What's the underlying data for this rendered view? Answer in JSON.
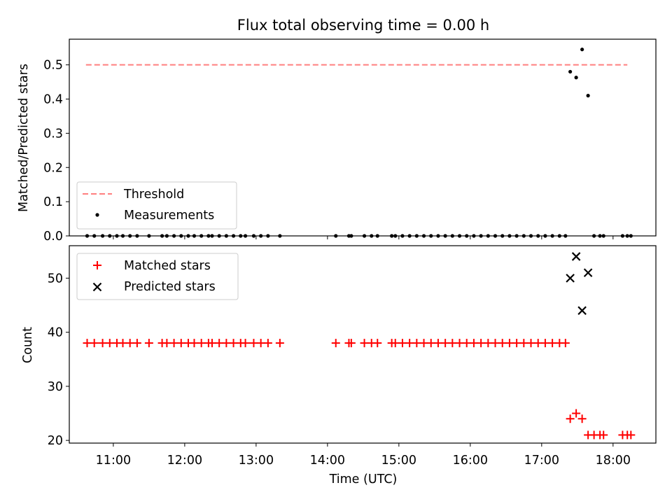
{
  "chart_data": [
    {
      "type": "scatter",
      "title": "Flux total observing time = 0.00 h",
      "xlabel": "",
      "ylabel": "Matched/Predicted stars",
      "ylim": [
        0,
        0.575
      ],
      "xlim": [
        "10:23",
        "18:36"
      ],
      "yticks": [
        "0.0",
        "0.1",
        "0.2",
        "0.3",
        "0.4",
        "0.5"
      ],
      "grid": false,
      "legend_position": "lower-left",
      "threshold": {
        "name": "Threshold",
        "value": 0.5,
        "x_start": "10:37",
        "x_end": "18:12",
        "color": "#ff7f7f"
      },
      "series": [
        {
          "name": "Measurements",
          "color": "#000000",
          "x": [
            "10:38",
            "10:44",
            "10:51",
            "10:57",
            "11:03",
            "11:08",
            "11:14",
            "11:20",
            "11:30",
            "11:41",
            "11:45",
            "11:51",
            "11:57",
            "12:03",
            "12:08",
            "12:14",
            "12:20",
            "12:23",
            "12:29",
            "12:35",
            "12:41",
            "12:47",
            "12:51",
            "12:58",
            "13:04",
            "13:10",
            "13:20",
            "14:07",
            "14:18",
            "14:20",
            "14:31",
            "14:37",
            "14:42",
            "14:54",
            "14:57",
            "15:03",
            "15:09",
            "15:15",
            "15:21",
            "15:27",
            "15:33",
            "15:39",
            "15:45",
            "15:51",
            "15:57",
            "16:03",
            "16:09",
            "16:15",
            "16:21",
            "16:27",
            "16:33",
            "16:39",
            "16:45",
            "16:51",
            "16:57",
            "17:03",
            "17:09",
            "17:15",
            "17:20",
            "17:24",
            "17:29",
            "17:34",
            "17:39",
            "17:44",
            "17:49",
            "17:52",
            "18:08",
            "18:12",
            "18:15"
          ],
          "y": [
            0,
            0,
            0,
            0,
            0,
            0,
            0,
            0,
            0,
            0,
            0,
            0,
            0,
            0,
            0,
            0,
            0,
            0,
            0,
            0,
            0,
            0,
            0,
            0,
            0,
            0,
            0,
            0,
            0,
            0,
            0,
            0,
            0,
            0,
            0,
            0,
            0,
            0,
            0,
            0,
            0,
            0,
            0,
            0,
            0,
            0,
            0,
            0,
            0,
            0,
            0,
            0,
            0,
            0,
            0,
            0,
            0,
            0,
            0,
            0.48,
            0.463,
            0.545,
            0.41,
            0,
            0,
            0,
            0,
            0,
            0
          ]
        }
      ]
    },
    {
      "type": "scatter",
      "title": "",
      "xlabel": "Time (UTC)",
      "ylabel": "Count",
      "ylim": [
        19.5,
        56
      ],
      "xlim": [
        "10:23",
        "18:36"
      ],
      "yticks": [
        "20",
        "30",
        "40",
        "50"
      ],
      "xticks": [
        "11:00",
        "12:00",
        "13:00",
        "14:00",
        "15:00",
        "16:00",
        "17:00",
        "18:00"
      ],
      "grid": false,
      "legend_position": "upper-left",
      "series": [
        {
          "name": "Matched stars",
          "color": "#ff0000",
          "marker": "+",
          "x": [
            "10:38",
            "10:44",
            "10:51",
            "10:57",
            "11:03",
            "11:08",
            "11:14",
            "11:20",
            "11:30",
            "11:41",
            "11:45",
            "11:51",
            "11:57",
            "12:03",
            "12:08",
            "12:14",
            "12:20",
            "12:23",
            "12:29",
            "12:35",
            "12:41",
            "12:47",
            "12:51",
            "12:58",
            "13:04",
            "13:10",
            "13:20",
            "14:07",
            "14:18",
            "14:20",
            "14:31",
            "14:37",
            "14:42",
            "14:54",
            "14:57",
            "15:03",
            "15:09",
            "15:15",
            "15:21",
            "15:27",
            "15:33",
            "15:39",
            "15:45",
            "15:51",
            "15:57",
            "16:03",
            "16:09",
            "16:15",
            "16:21",
            "16:27",
            "16:33",
            "16:39",
            "16:45",
            "16:51",
            "16:57",
            "17:03",
            "17:09",
            "17:15",
            "17:20",
            "17:24",
            "17:29",
            "17:34",
            "17:39",
            "17:44",
            "17:49",
            "17:52",
            "18:08",
            "18:12",
            "18:15"
          ],
          "y": [
            38,
            38,
            38,
            38,
            38,
            38,
            38,
            38,
            38,
            38,
            38,
            38,
            38,
            38,
            38,
            38,
            38,
            38,
            38,
            38,
            38,
            38,
            38,
            38,
            38,
            38,
            38,
            38,
            38,
            38,
            38,
            38,
            38,
            38,
            38,
            38,
            38,
            38,
            38,
            38,
            38,
            38,
            38,
            38,
            38,
            38,
            38,
            38,
            38,
            38,
            38,
            38,
            38,
            38,
            38,
            38,
            38,
            38,
            38,
            24,
            25,
            24,
            21,
            21,
            21,
            21,
            21,
            21,
            21
          ]
        },
        {
          "name": "Predicted stars",
          "color": "#000000",
          "marker": "x",
          "x": [
            "17:24",
            "17:29",
            "17:34",
            "17:39"
          ],
          "y": [
            50,
            54,
            44,
            51
          ]
        }
      ]
    }
  ]
}
